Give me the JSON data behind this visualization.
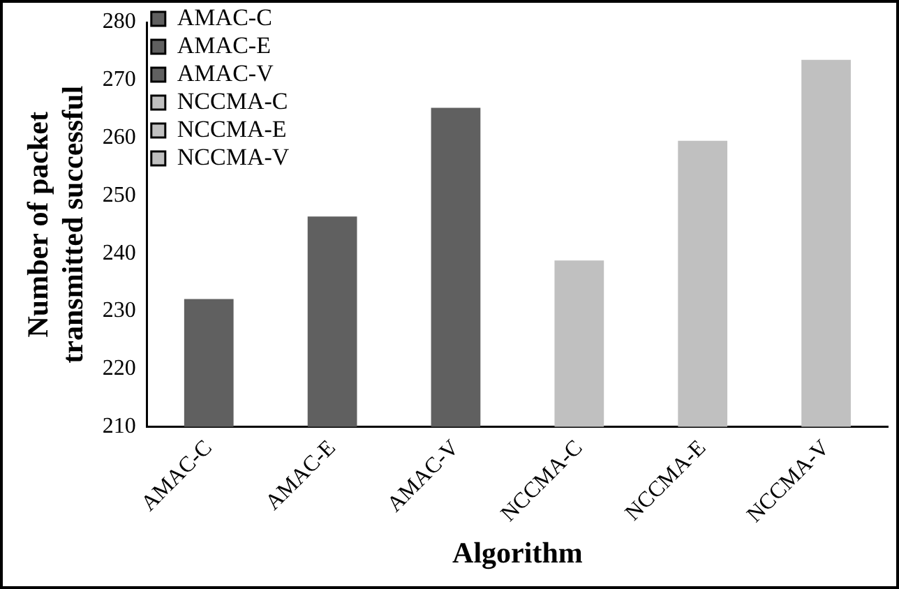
{
  "chart_data": {
    "type": "bar",
    "xlabel": "Algorithm",
    "ylabel": "Number of packet transmitted successful",
    "categories": [
      "AMAC-C",
      "AMAC-E",
      "AMAC-V",
      "NCCMA-C",
      "NCCMA-E",
      "NCCMA-V"
    ],
    "series": [
      {
        "name": "AMAC-C",
        "color": "#606060",
        "values": [
          232.1,
          null,
          null,
          null,
          null,
          null
        ]
      },
      {
        "name": "AMAC-E",
        "color": "#606060",
        "values": [
          null,
          246.4,
          null,
          null,
          null,
          null
        ]
      },
      {
        "name": "AMAC-V",
        "color": "#606060",
        "values": [
          null,
          null,
          265.2,
          null,
          null,
          null
        ]
      },
      {
        "name": "NCCMA-C",
        "color": "#c0c0c0",
        "values": [
          null,
          null,
          null,
          238.8,
          null,
          null
        ]
      },
      {
        "name": "NCCMA-E",
        "color": "#c0c0c0",
        "values": [
          null,
          null,
          null,
          null,
          259.5,
          null
        ]
      },
      {
        "name": "NCCMA-V",
        "color": "#c0c0c0",
        "values": [
          null,
          null,
          null,
          null,
          null,
          273.5
        ]
      }
    ],
    "ylim": [
      210,
      280
    ],
    "yticks": [
      210,
      220,
      230,
      240,
      250,
      260,
      270,
      280
    ],
    "grid": false,
    "legend": "top left"
  }
}
